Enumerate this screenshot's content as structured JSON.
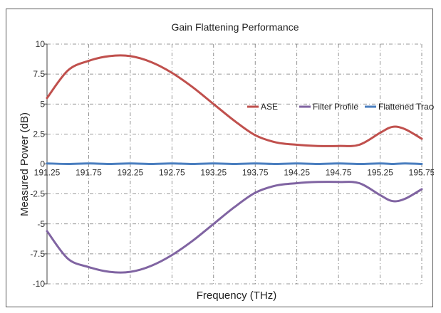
{
  "chart_data": {
    "type": "line",
    "title": "Gain Flattening Performance",
    "xlabel": "Frequency (THz)",
    "ylabel": "Measured  Power (dB)",
    "xlim": [
      191.25,
      195.75
    ],
    "ylim": [
      -10,
      10
    ],
    "x_ticks": [
      "191.25",
      "191.75",
      "192.25",
      "192.75",
      "193.25",
      "193.75",
      "194.25",
      "194.75",
      "195.25",
      "195.75"
    ],
    "y_ticks": [
      "10",
      "7.5",
      "5",
      "2.5",
      "0",
      "-2.5",
      "-5",
      "-7.5",
      "-10"
    ],
    "grid": true,
    "legend_position": "right",
    "x": [
      191.25,
      191.5,
      191.75,
      192.0,
      192.25,
      192.5,
      192.75,
      193.0,
      193.25,
      193.5,
      193.75,
      194.0,
      194.25,
      194.5,
      194.75,
      195.0,
      195.25,
      195.4,
      195.55,
      195.75
    ],
    "series": [
      {
        "name": "ASE",
        "color": "#c0504d",
        "values": [
          5.5,
          7.8,
          8.6,
          9.0,
          9.0,
          8.5,
          7.6,
          6.4,
          5.0,
          3.6,
          2.4,
          1.8,
          1.6,
          1.5,
          1.5,
          1.6,
          2.6,
          3.1,
          2.9,
          2.1
        ]
      },
      {
        "name": "Filter Profile",
        "color": "#8064a2",
        "values": [
          -5.6,
          -7.9,
          -8.6,
          -9.0,
          -9.0,
          -8.5,
          -7.6,
          -6.4,
          -5.0,
          -3.6,
          -2.4,
          -1.8,
          -1.6,
          -1.5,
          -1.5,
          -1.6,
          -2.6,
          -3.1,
          -2.9,
          -2.1
        ]
      },
      {
        "name": "Flattened Trace",
        "color": "#4a7ebf",
        "values": [
          0.05,
          0.0,
          0.05,
          0.0,
          0.05,
          0.0,
          0.05,
          0.0,
          0.05,
          0.0,
          0.05,
          0.0,
          0.05,
          0.0,
          0.05,
          0.0,
          0.05,
          0.0,
          0.05,
          0.0
        ]
      }
    ]
  }
}
